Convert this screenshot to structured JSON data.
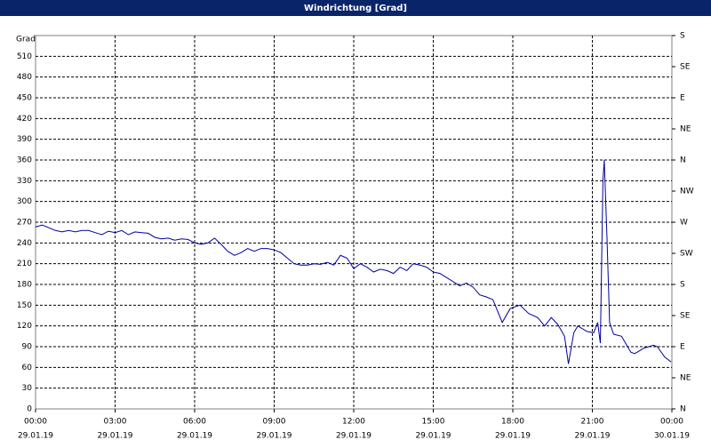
{
  "chart_data": {
    "type": "line",
    "title": "Windrichtung [Grad]",
    "ylabel": "Grad",
    "x": [
      0,
      0.25,
      0.5,
      0.75,
      1,
      1.25,
      1.5,
      1.75,
      2,
      2.25,
      2.5,
      2.75,
      3,
      3.25,
      3.5,
      3.75,
      4,
      4.25,
      4.5,
      4.75,
      5,
      5.25,
      5.5,
      5.75,
      6,
      6.25,
      6.5,
      6.75,
      7,
      7.25,
      7.5,
      7.75,
      8,
      8.25,
      8.5,
      8.75,
      9,
      9.25,
      9.5,
      9.75,
      10,
      10.25,
      10.5,
      10.75,
      11,
      11.25,
      11.5,
      11.75,
      12,
      12.25,
      12.5,
      12.75,
      13,
      13.25,
      13.5,
      13.75,
      14,
      14.25,
      14.5,
      14.75,
      15,
      15.25,
      15.5,
      15.75,
      16,
      16.25,
      16.5,
      16.75,
      17,
      17.25,
      17.6,
      17.9,
      18.27,
      18.6,
      18.94,
      19.2,
      19.45,
      19.7,
      19.95,
      20.1,
      20.3,
      20.45,
      20.8,
      21.05,
      21.2,
      21.3,
      21.4,
      21.45,
      21.55,
      21.65,
      21.8,
      22.1,
      22.45,
      22.6,
      22.95,
      23.3,
      23.45,
      23.73,
      23.97
    ],
    "series": [
      {
        "name": "Windrichtung",
        "color": "#0000a0",
        "values": [
          263,
          266,
          262,
          258,
          256,
          258,
          256,
          258,
          258,
          255,
          252,
          257,
          255,
          258,
          252,
          256,
          255,
          254,
          248,
          246,
          247,
          244,
          246,
          245,
          240,
          238,
          240,
          247,
          238,
          228,
          222,
          226,
          232,
          228,
          232,
          232,
          230,
          226,
          218,
          210,
          208,
          208,
          210,
          209,
          212,
          208,
          222,
          218,
          203,
          210,
          205,
          198,
          202,
          200,
          196,
          205,
          200,
          210,
          208,
          205,
          198,
          196,
          190,
          184,
          178,
          182,
          176,
          165,
          162,
          158,
          125,
          145,
          150,
          138,
          132,
          120,
          132,
          122,
          105,
          65,
          110,
          120,
          112,
          110,
          125,
          95,
          330,
          360,
          250,
          125,
          108,
          105,
          82,
          80,
          88,
          92,
          90,
          75,
          68
        ]
      }
    ],
    "xlim": [
      0,
      24
    ],
    "xticks": [
      {
        "value": 0,
        "label": "00:00"
      },
      {
        "value": 3,
        "label": "03:00"
      },
      {
        "value": 6,
        "label": "06:00"
      },
      {
        "value": 9,
        "label": "09:00"
      },
      {
        "value": 12,
        "label": "12:00"
      },
      {
        "value": 15,
        "label": "15:00"
      },
      {
        "value": 18,
        "label": "18:00"
      },
      {
        "value": 21,
        "label": "21:00"
      },
      {
        "value": 24,
        "label": "00:00"
      }
    ],
    "xtick_dates": [
      "29.01.19",
      "29.01.19",
      "29.01.19",
      "29.01.19",
      "29.01.19",
      "29.01.19",
      "29.01.19",
      "29.01.19",
      "30.01.19"
    ],
    "ylim": [
      0,
      540
    ],
    "yticks": [
      0,
      30,
      60,
      90,
      120,
      150,
      180,
      210,
      240,
      270,
      300,
      330,
      360,
      390,
      420,
      450,
      480,
      510
    ],
    "y2lim": [
      0,
      540
    ],
    "y2ticks": [
      {
        "value": 0,
        "label": "N"
      },
      {
        "value": 45,
        "label": "NE"
      },
      {
        "value": 90,
        "label": "E"
      },
      {
        "value": 135,
        "label": "SE"
      },
      {
        "value": 180,
        "label": "S"
      },
      {
        "value": 225,
        "label": "SW"
      },
      {
        "value": 270,
        "label": "W"
      },
      {
        "value": 315,
        "label": "NW"
      },
      {
        "value": 360,
        "label": "N"
      },
      {
        "value": 405,
        "label": "NE"
      },
      {
        "value": 450,
        "label": "E"
      },
      {
        "value": 495,
        "label": "SE"
      },
      {
        "value": 540,
        "label": "S"
      }
    ],
    "grid": true
  }
}
